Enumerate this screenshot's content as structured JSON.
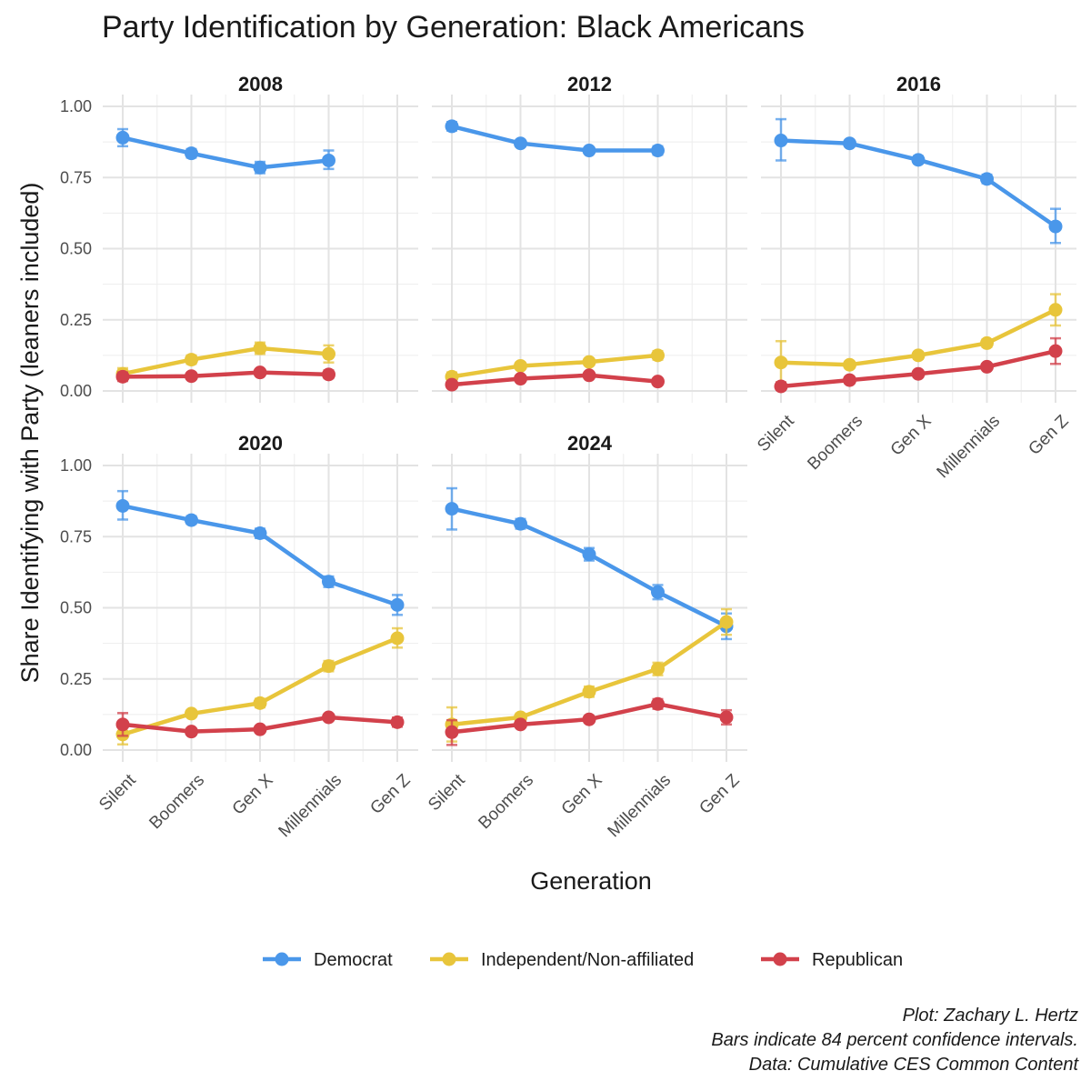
{
  "chart_data": {
    "type": "line",
    "title": "Party Identification by Generation: Black Americans",
    "xlabel": "Generation",
    "ylabel": "Share Identifying with Party (leaners included)",
    "ylim": [
      0,
      1
    ],
    "yticks": [
      "0.00",
      "0.25",
      "0.50",
      "0.75",
      "1.00"
    ],
    "categories": [
      "Silent",
      "Boomers",
      "Gen X",
      "Millennials",
      "Gen Z"
    ],
    "series_meta": [
      {
        "key": "dem",
        "name": "Democrat",
        "color": "#4a97ea"
      },
      {
        "key": "ind",
        "name": "Independent/Non-affiliated",
        "color": "#e8c53b"
      },
      {
        "key": "rep",
        "name": "Republican",
        "color": "#d2414b"
      }
    ],
    "facets": [
      {
        "label": "2008",
        "series": {
          "dem": [
            {
              "x": 0,
              "y": 0.89,
              "lo": 0.86,
              "hi": 0.92
            },
            {
              "x": 1,
              "y": 0.835,
              "lo": 0.82,
              "hi": 0.85
            },
            {
              "x": 2,
              "y": 0.785,
              "lo": 0.765,
              "hi": 0.805
            },
            {
              "x": 3,
              "y": 0.81,
              "lo": 0.78,
              "hi": 0.845
            }
          ],
          "ind": [
            {
              "x": 0,
              "y": 0.06,
              "lo": 0.04,
              "hi": 0.08
            },
            {
              "x": 1,
              "y": 0.11,
              "lo": 0.095,
              "hi": 0.125
            },
            {
              "x": 2,
              "y": 0.15,
              "lo": 0.13,
              "hi": 0.17
            },
            {
              "x": 3,
              "y": 0.13,
              "lo": 0.1,
              "hi": 0.16
            }
          ],
          "rep": [
            {
              "x": 0,
              "y": 0.05,
              "lo": 0.035,
              "hi": 0.065
            },
            {
              "x": 1,
              "y": 0.052,
              "lo": 0.045,
              "hi": 0.06
            },
            {
              "x": 2,
              "y": 0.065,
              "lo": 0.055,
              "hi": 0.075
            },
            {
              "x": 3,
              "y": 0.058,
              "lo": 0.045,
              "hi": 0.072
            }
          ]
        }
      },
      {
        "label": "2012",
        "series": {
          "dem": [
            {
              "x": 0,
              "y": 0.93,
              "lo": 0.915,
              "hi": 0.945
            },
            {
              "x": 1,
              "y": 0.87,
              "lo": 0.865,
              "hi": 0.877
            },
            {
              "x": 2,
              "y": 0.845,
              "lo": 0.835,
              "hi": 0.855
            },
            {
              "x": 3,
              "y": 0.845,
              "lo": 0.83,
              "hi": 0.86
            }
          ],
          "ind": [
            {
              "x": 0,
              "y": 0.05,
              "lo": 0.035,
              "hi": 0.065
            },
            {
              "x": 1,
              "y": 0.088,
              "lo": 0.08,
              "hi": 0.096
            },
            {
              "x": 2,
              "y": 0.102,
              "lo": 0.094,
              "hi": 0.11
            },
            {
              "x": 3,
              "y": 0.125,
              "lo": 0.11,
              "hi": 0.14
            }
          ],
          "rep": [
            {
              "x": 0,
              "y": 0.022,
              "lo": 0.014,
              "hi": 0.03
            },
            {
              "x": 1,
              "y": 0.043,
              "lo": 0.038,
              "hi": 0.048
            },
            {
              "x": 2,
              "y": 0.055,
              "lo": 0.049,
              "hi": 0.061
            },
            {
              "x": 3,
              "y": 0.033,
              "lo": 0.025,
              "hi": 0.041
            }
          ]
        }
      },
      {
        "label": "2016",
        "series": {
          "dem": [
            {
              "x": 0,
              "y": 0.88,
              "lo": 0.81,
              "hi": 0.955
            },
            {
              "x": 1,
              "y": 0.87,
              "lo": 0.86,
              "hi": 0.88
            },
            {
              "x": 2,
              "y": 0.812,
              "lo": 0.8,
              "hi": 0.825
            },
            {
              "x": 3,
              "y": 0.745,
              "lo": 0.73,
              "hi": 0.76
            },
            {
              "x": 4,
              "y": 0.578,
              "lo": 0.52,
              "hi": 0.64
            }
          ],
          "ind": [
            {
              "x": 0,
              "y": 0.1,
              "lo": 0.03,
              "hi": 0.175
            },
            {
              "x": 1,
              "y": 0.092,
              "lo": 0.082,
              "hi": 0.102
            },
            {
              "x": 2,
              "y": 0.125,
              "lo": 0.113,
              "hi": 0.137
            },
            {
              "x": 3,
              "y": 0.168,
              "lo": 0.155,
              "hi": 0.181
            },
            {
              "x": 4,
              "y": 0.285,
              "lo": 0.23,
              "hi": 0.34
            }
          ],
          "rep": [
            {
              "x": 0,
              "y": 0.016,
              "lo": 0.004,
              "hi": 0.03
            },
            {
              "x": 1,
              "y": 0.038,
              "lo": 0.032,
              "hi": 0.044
            },
            {
              "x": 2,
              "y": 0.06,
              "lo": 0.053,
              "hi": 0.067
            },
            {
              "x": 3,
              "y": 0.085,
              "lo": 0.077,
              "hi": 0.093
            },
            {
              "x": 4,
              "y": 0.14,
              "lo": 0.095,
              "hi": 0.185
            }
          ]
        }
      },
      {
        "label": "2020",
        "series": {
          "dem": [
            {
              "x": 0,
              "y": 0.858,
              "lo": 0.81,
              "hi": 0.91
            },
            {
              "x": 1,
              "y": 0.808,
              "lo": 0.795,
              "hi": 0.822
            },
            {
              "x": 2,
              "y": 0.762,
              "lo": 0.745,
              "hi": 0.778
            },
            {
              "x": 3,
              "y": 0.592,
              "lo": 0.573,
              "hi": 0.61
            },
            {
              "x": 4,
              "y": 0.51,
              "lo": 0.475,
              "hi": 0.545
            }
          ],
          "ind": [
            {
              "x": 0,
              "y": 0.055,
              "lo": 0.02,
              "hi": 0.09
            },
            {
              "x": 1,
              "y": 0.128,
              "lo": 0.116,
              "hi": 0.14
            },
            {
              "x": 2,
              "y": 0.165,
              "lo": 0.15,
              "hi": 0.18
            },
            {
              "x": 3,
              "y": 0.295,
              "lo": 0.277,
              "hi": 0.313
            },
            {
              "x": 4,
              "y": 0.393,
              "lo": 0.36,
              "hi": 0.428
            }
          ],
          "rep": [
            {
              "x": 0,
              "y": 0.09,
              "lo": 0.05,
              "hi": 0.13
            },
            {
              "x": 1,
              "y": 0.065,
              "lo": 0.058,
              "hi": 0.072
            },
            {
              "x": 2,
              "y": 0.073,
              "lo": 0.065,
              "hi": 0.081
            },
            {
              "x": 3,
              "y": 0.115,
              "lo": 0.104,
              "hi": 0.126
            },
            {
              "x": 4,
              "y": 0.098,
              "lo": 0.082,
              "hi": 0.114
            }
          ]
        }
      },
      {
        "label": "2024",
        "series": {
          "dem": [
            {
              "x": 0,
              "y": 0.848,
              "lo": 0.775,
              "hi": 0.92
            },
            {
              "x": 1,
              "y": 0.795,
              "lo": 0.778,
              "hi": 0.812
            },
            {
              "x": 2,
              "y": 0.688,
              "lo": 0.666,
              "hi": 0.71
            },
            {
              "x": 3,
              "y": 0.555,
              "lo": 0.53,
              "hi": 0.58
            },
            {
              "x": 4,
              "y": 0.435,
              "lo": 0.39,
              "hi": 0.48
            }
          ],
          "ind": [
            {
              "x": 0,
              "y": 0.09,
              "lo": 0.03,
              "hi": 0.15
            },
            {
              "x": 1,
              "y": 0.115,
              "lo": 0.102,
              "hi": 0.128
            },
            {
              "x": 2,
              "y": 0.205,
              "lo": 0.187,
              "hi": 0.223
            },
            {
              "x": 3,
              "y": 0.285,
              "lo": 0.263,
              "hi": 0.307
            },
            {
              "x": 4,
              "y": 0.45,
              "lo": 0.405,
              "hi": 0.495
            }
          ],
          "rep": [
            {
              "x": 0,
              "y": 0.063,
              "lo": 0.018,
              "hi": 0.105
            },
            {
              "x": 1,
              "y": 0.09,
              "lo": 0.08,
              "hi": 0.1
            },
            {
              "x": 2,
              "y": 0.108,
              "lo": 0.097,
              "hi": 0.119
            },
            {
              "x": 3,
              "y": 0.162,
              "lo": 0.145,
              "hi": 0.179
            },
            {
              "x": 4,
              "y": 0.115,
              "lo": 0.09,
              "hi": 0.14
            }
          ]
        }
      }
    ],
    "caption": [
      "Plot: Zachary L. Hertz",
      "Bars indicate 84 percent confidence intervals.",
      "Data: Cumulative CES Common Content"
    ]
  }
}
